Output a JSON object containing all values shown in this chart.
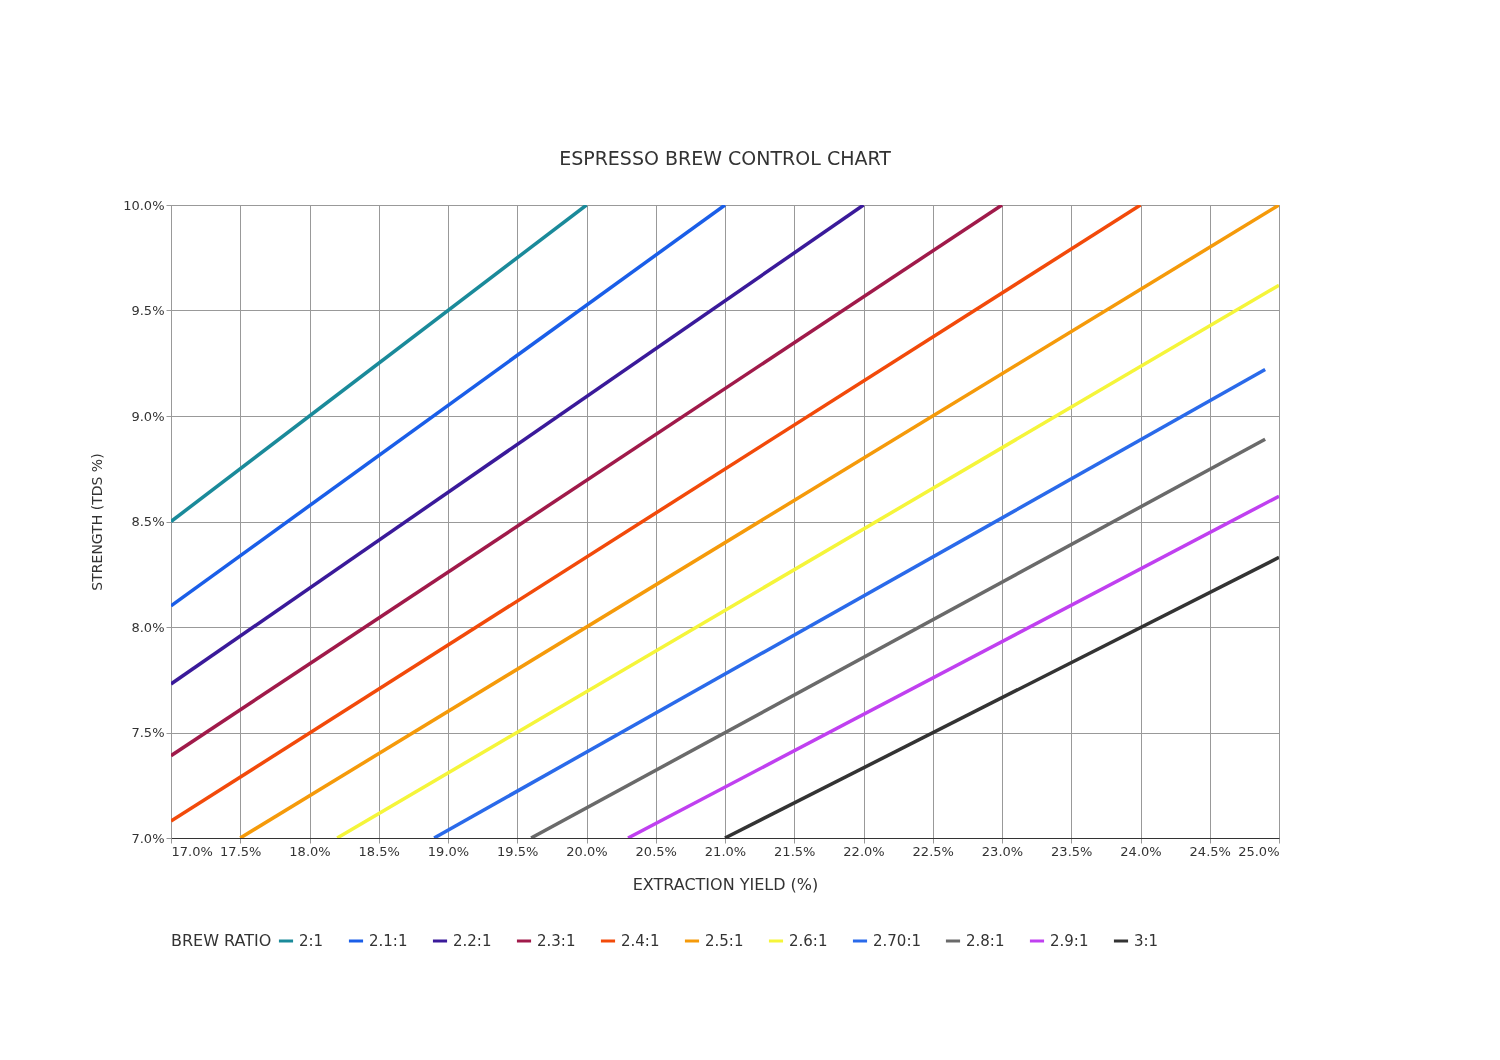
{
  "chart_data": {
    "type": "line",
    "title": "ESPRESSO BREW CONTROL CHART",
    "xlabel": "EXTRACTION YIELD (%)",
    "ylabel": "STRENGTH (TDS %)",
    "legend_title": "BREW RATIO",
    "legend": "bottom",
    "grid": true,
    "xlim": [
      17,
      25
    ],
    "ylim": [
      7,
      10
    ],
    "xticks": [
      {
        "value": 17,
        "label": "17.0%"
      },
      {
        "value": 17.5,
        "label": "17.5%"
      },
      {
        "value": 18,
        "label": "18.0%"
      },
      {
        "value": 18.5,
        "label": "18.5%"
      },
      {
        "value": 19,
        "label": "19.0%"
      },
      {
        "value": 19.5,
        "label": "19.5%"
      },
      {
        "value": 20,
        "label": "20.0%"
      },
      {
        "value": 20.5,
        "label": "20.5%"
      },
      {
        "value": 21,
        "label": "21.0%"
      },
      {
        "value": 21.5,
        "label": "21.5%"
      },
      {
        "value": 22,
        "label": "22.0%"
      },
      {
        "value": 22.5,
        "label": "22.5%"
      },
      {
        "value": 23,
        "label": "23.0%"
      },
      {
        "value": 23.5,
        "label": "23.5%"
      },
      {
        "value": 24,
        "label": "24.0%"
      },
      {
        "value": 24.5,
        "label": "24.5%"
      },
      {
        "value": 25,
        "label": "25.0%"
      }
    ],
    "yticks": [
      {
        "value": 7,
        "label": "7.0%"
      },
      {
        "value": 7.5,
        "label": "7.5%"
      },
      {
        "value": 8,
        "label": "8.0%"
      },
      {
        "value": 8.5,
        "label": "8.5%"
      },
      {
        "value": 9,
        "label": "9.0%"
      },
      {
        "value": 9.5,
        "label": "9.5%"
      },
      {
        "value": 10,
        "label": "10.0%"
      }
    ],
    "series": [
      {
        "name": "2:1",
        "color": "#1a8a9a",
        "x": [
          17,
          20
        ],
        "values": [
          8.5,
          10
        ]
      },
      {
        "name": "2.1:1",
        "color": "#1a5ee8",
        "x": [
          17,
          21
        ],
        "values": [
          8.1,
          10
        ]
      },
      {
        "name": "2.2:1",
        "color": "#3a1a9a",
        "x": [
          17,
          22
        ],
        "values": [
          7.73,
          10
        ]
      },
      {
        "name": "2.3:1",
        "color": "#a01a4a",
        "x": [
          17,
          23
        ],
        "values": [
          7.39,
          10
        ]
      },
      {
        "name": "2.4:1",
        "color": "#f24a0a",
        "x": [
          17,
          24
        ],
        "values": [
          7.08,
          10
        ]
      },
      {
        "name": "2.5:1",
        "color": "#f59a0a",
        "x": [
          17.5,
          25
        ],
        "values": [
          7,
          10
        ]
      },
      {
        "name": "2.6:1",
        "color": "#f5f53a",
        "x": [
          18.2,
          25
        ],
        "values": [
          7,
          9.62
        ]
      },
      {
        "name": "2.70:1",
        "color": "#2a6aea",
        "x": [
          18.9,
          24.9
        ],
        "values": [
          7,
          9.22
        ]
      },
      {
        "name": "2.8:1",
        "color": "#6a6a6a",
        "x": [
          19.6,
          24.9
        ],
        "values": [
          7,
          8.89
        ]
      },
      {
        "name": "2.9:1",
        "color": "#c040f0",
        "x": [
          20.3,
          25
        ],
        "values": [
          7,
          8.62
        ]
      },
      {
        "name": "3:1",
        "color": "#333333",
        "x": [
          21,
          25
        ],
        "values": [
          7,
          8.33
        ]
      }
    ]
  }
}
